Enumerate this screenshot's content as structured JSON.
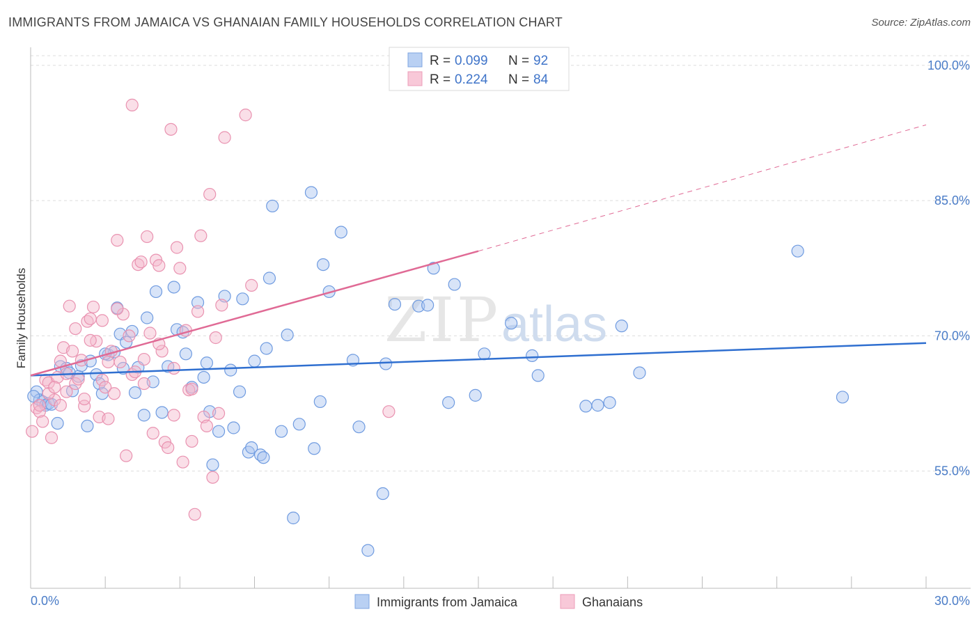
{
  "header": {
    "title": "IMMIGRANTS FROM JAMAICA VS GHANAIAN FAMILY HOUSEHOLDS CORRELATION CHART",
    "source": "Source: ZipAtlas.com"
  },
  "watermark": {
    "zip": "ZIP",
    "atlas": "atlas"
  },
  "colors": {
    "blue_fill": "#a9c4ef",
    "blue_stroke": "#6f9be0",
    "blue_line": "#2f6fd0",
    "pink_fill": "#f5b8cc",
    "pink_stroke": "#e992b0",
    "pink_line": "#e06a95",
    "grid": "#dddddd",
    "tick_text": "#4a7cc7"
  },
  "chart_data": {
    "type": "scatter",
    "title": "IMMIGRANTS FROM JAMAICA VS GHANAIAN FAMILY HOUSEHOLDS CORRELATION CHART",
    "xlabel": "",
    "ylabel": "Family Households",
    "xlim": [
      0,
      30
    ],
    "ylim": [
      42,
      102
    ],
    "x_tick_labels": {
      "min": "0.0%",
      "max": "30.0%"
    },
    "y_ticks": [
      {
        "value": 55,
        "label": "55.0%"
      },
      {
        "value": 70,
        "label": "70.0%"
      },
      {
        "value": 85,
        "label": "85.0%"
      },
      {
        "value": 100,
        "label": "100.0%"
      }
    ],
    "legend": {
      "position": "top-center",
      "entries": [
        {
          "r_label": "R = ",
          "r_value": "0.099",
          "n_label": "N = ",
          "n_value": "92"
        },
        {
          "r_label": "R = ",
          "r_value": "0.224",
          "n_label": "N = ",
          "n_value": "84"
        }
      ]
    },
    "bottom_legend": [
      "Immigrants from Jamaica",
      "Ghanaians"
    ],
    "series": [
      {
        "name": "Immigrants from Jamaica",
        "color": "blue",
        "trend": {
          "x0": 0,
          "y0": 65.6,
          "x1": 30,
          "y1": 69.2,
          "dashed_from": null
        },
        "points": [
          [
            0.2,
            63.8
          ],
          [
            0.3,
            62.9
          ],
          [
            0.4,
            62.7
          ],
          [
            0.5,
            62.3
          ],
          [
            0.6,
            62.5
          ],
          [
            0.9,
            60.3
          ],
          [
            1.0,
            66.6
          ],
          [
            1.2,
            66.4
          ],
          [
            1.4,
            63.9
          ],
          [
            1.6,
            65.5
          ],
          [
            1.7,
            66.7
          ],
          [
            1.9,
            60.0
          ],
          [
            2.0,
            67.2
          ],
          [
            2.2,
            65.7
          ],
          [
            2.3,
            64.7
          ],
          [
            2.4,
            63.6
          ],
          [
            2.6,
            67.9
          ],
          [
            2.8,
            68.2
          ],
          [
            2.9,
            73.1
          ],
          [
            3.0,
            70.2
          ],
          [
            3.1,
            66.4
          ],
          [
            3.2,
            69.3
          ],
          [
            3.4,
            70.5
          ],
          [
            3.5,
            63.7
          ],
          [
            3.6,
            66.5
          ],
          [
            3.8,
            61.2
          ],
          [
            3.9,
            72.0
          ],
          [
            4.1,
            64.9
          ],
          [
            4.2,
            74.9
          ],
          [
            4.4,
            61.5
          ],
          [
            4.6,
            66.6
          ],
          [
            4.8,
            75.4
          ],
          [
            4.9,
            70.7
          ],
          [
            5.1,
            70.4
          ],
          [
            5.2,
            68.0
          ],
          [
            5.4,
            64.3
          ],
          [
            5.6,
            73.7
          ],
          [
            5.8,
            65.4
          ],
          [
            5.9,
            67.0
          ],
          [
            6.0,
            61.6
          ],
          [
            6.1,
            55.7
          ],
          [
            6.3,
            59.4
          ],
          [
            6.5,
            74.4
          ],
          [
            6.7,
            66.2
          ],
          [
            6.8,
            59.8
          ],
          [
            7.0,
            63.8
          ],
          [
            7.1,
            74.1
          ],
          [
            7.3,
            57.1
          ],
          [
            7.4,
            57.6
          ],
          [
            7.5,
            67.2
          ],
          [
            7.7,
            56.8
          ],
          [
            7.8,
            56.5
          ],
          [
            7.9,
            68.6
          ],
          [
            8.0,
            76.4
          ],
          [
            8.1,
            84.4
          ],
          [
            8.4,
            59.4
          ],
          [
            8.6,
            70.1
          ],
          [
            8.8,
            49.8
          ],
          [
            9.0,
            60.2
          ],
          [
            9.4,
            85.9
          ],
          [
            9.5,
            57.5
          ],
          [
            9.7,
            62.7
          ],
          [
            9.8,
            77.9
          ],
          [
            10.0,
            74.9
          ],
          [
            10.4,
            81.5
          ],
          [
            10.8,
            67.3
          ],
          [
            11.0,
            59.9
          ],
          [
            11.3,
            46.2
          ],
          [
            11.8,
            52.5
          ],
          [
            11.9,
            66.9
          ],
          [
            12.2,
            73.5
          ],
          [
            13.0,
            73.3
          ],
          [
            13.3,
            73.4
          ],
          [
            13.5,
            77.5
          ],
          [
            14.0,
            62.6
          ],
          [
            14.2,
            75.7
          ],
          [
            14.9,
            63.4
          ],
          [
            15.2,
            68.0
          ],
          [
            16.1,
            71.4
          ],
          [
            16.8,
            67.8
          ],
          [
            17.0,
            65.6
          ],
          [
            18.6,
            62.2
          ],
          [
            19.0,
            62.3
          ],
          [
            19.4,
            62.6
          ],
          [
            19.8,
            71.1
          ],
          [
            20.4,
            65.9
          ],
          [
            25.7,
            79.4
          ],
          [
            27.2,
            63.2
          ],
          [
            0.1,
            63.3
          ],
          [
            0.7,
            62.4
          ],
          [
            1.3,
            65.9
          ],
          [
            2.5,
            68.0
          ]
        ]
      },
      {
        "name": "Ghanaians",
        "color": "pink",
        "trend": {
          "x0": 0,
          "y0": 65.6,
          "x1": 15,
          "y1": 79.4,
          "dashed_to_x": 30,
          "dashed_to_y": 93.4
        },
        "points": [
          [
            0.05,
            59.4
          ],
          [
            0.2,
            62.0
          ],
          [
            0.3,
            61.6
          ],
          [
            0.4,
            60.5
          ],
          [
            0.5,
            65.1
          ],
          [
            0.6,
            64.8
          ],
          [
            0.7,
            58.7
          ],
          [
            0.8,
            62.9
          ],
          [
            0.9,
            65.4
          ],
          [
            1.0,
            67.2
          ],
          [
            1.1,
            68.7
          ],
          [
            1.2,
            63.8
          ],
          [
            1.3,
            73.3
          ],
          [
            1.4,
            68.3
          ],
          [
            1.5,
            64.7
          ],
          [
            1.6,
            65.2
          ],
          [
            1.7,
            67.3
          ],
          [
            1.8,
            62.2
          ],
          [
            1.9,
            71.6
          ],
          [
            2.0,
            71.9
          ],
          [
            2.1,
            73.2
          ],
          [
            2.2,
            69.4
          ],
          [
            2.3,
            61.0
          ],
          [
            2.4,
            65.1
          ],
          [
            2.5,
            64.3
          ],
          [
            2.6,
            60.8
          ],
          [
            2.7,
            68.3
          ],
          [
            2.8,
            63.6
          ],
          [
            2.9,
            80.6
          ],
          [
            3.0,
            67.1
          ],
          [
            3.1,
            72.4
          ],
          [
            3.2,
            56.7
          ],
          [
            3.3,
            70.0
          ],
          [
            3.4,
            65.7
          ],
          [
            3.5,
            66.0
          ],
          [
            3.6,
            77.9
          ],
          [
            3.7,
            78.2
          ],
          [
            3.8,
            67.4
          ],
          [
            3.9,
            81.0
          ],
          [
            4.0,
            70.3
          ],
          [
            4.1,
            59.2
          ],
          [
            4.2,
            78.4
          ],
          [
            4.3,
            77.8
          ],
          [
            4.4,
            68.3
          ],
          [
            4.5,
            58.2
          ],
          [
            4.6,
            57.6
          ],
          [
            4.7,
            92.9
          ],
          [
            4.8,
            61.2
          ],
          [
            4.9,
            79.8
          ],
          [
            5.0,
            77.5
          ],
          [
            5.1,
            56.0
          ],
          [
            5.2,
            70.6
          ],
          [
            5.3,
            64.0
          ],
          [
            5.4,
            58.3
          ],
          [
            5.5,
            50.2
          ],
          [
            5.6,
            72.7
          ],
          [
            5.7,
            81.1
          ],
          [
            5.8,
            61.0
          ],
          [
            5.9,
            60.0
          ],
          [
            6.0,
            85.7
          ],
          [
            6.1,
            54.3
          ],
          [
            6.2,
            69.8
          ],
          [
            6.3,
            61.4
          ],
          [
            6.4,
            73.4
          ],
          [
            6.5,
            92.0
          ],
          [
            7.2,
            94.5
          ],
          [
            7.4,
            75.6
          ],
          [
            3.4,
            95.6
          ],
          [
            1.0,
            62.3
          ],
          [
            0.6,
            63.6
          ],
          [
            1.8,
            63.0
          ],
          [
            2.4,
            71.7
          ],
          [
            2.6,
            67.1
          ],
          [
            3.8,
            64.7
          ],
          [
            4.8,
            66.4
          ],
          [
            5.4,
            64.1
          ],
          [
            2.9,
            73.0
          ],
          [
            1.5,
            70.8
          ],
          [
            4.3,
            69.1
          ],
          [
            12.0,
            61.6
          ],
          [
            0.3,
            62.3
          ],
          [
            0.8,
            64.3
          ],
          [
            1.2,
            65.8
          ],
          [
            2.0,
            69.5
          ]
        ]
      }
    ]
  }
}
